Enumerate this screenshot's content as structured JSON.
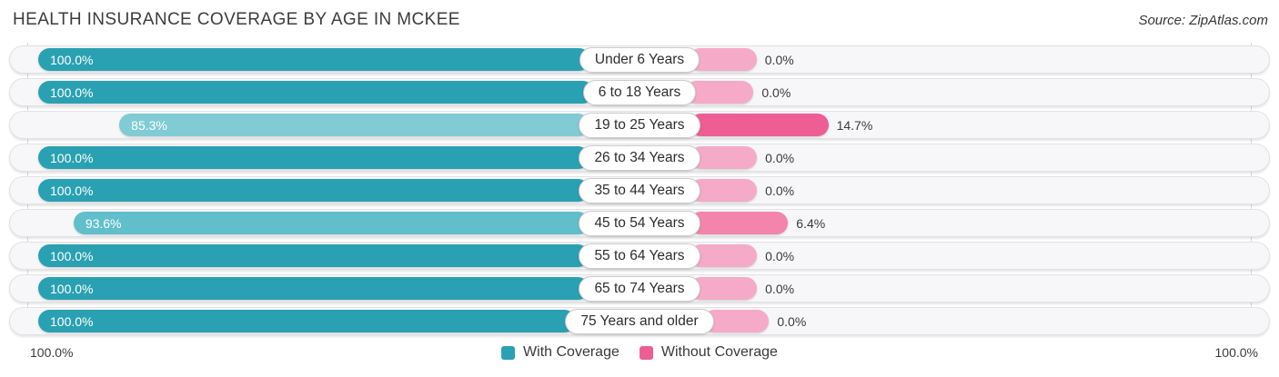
{
  "header": {
    "title": "HEALTH INSURANCE COVERAGE BY AGE IN MCKEE",
    "source": "Source: ZipAtlas.com"
  },
  "axis": {
    "left_label": "100.0%",
    "right_label": "100.0%"
  },
  "legend": [
    {
      "label": "With Coverage",
      "color": "#2aa1b2"
    },
    {
      "label": "Without Coverage",
      "color": "#ee5e93"
    }
  ],
  "rows": [
    {
      "label": "Under 6 Years",
      "with_label": "100.0%",
      "without_label": "0.0%",
      "with_value": 100.0,
      "without_value": 0.0,
      "with_color": "#2aa1b2",
      "without_color": "#f5abc7"
    },
    {
      "label": "6 to 18 Years",
      "with_label": "100.0%",
      "without_label": "0.0%",
      "with_value": 100.0,
      "without_value": 0.0,
      "with_color": "#2aa1b2",
      "without_color": "#f5abc7"
    },
    {
      "label": "19 to 25 Years",
      "with_label": "85.3%",
      "without_label": "14.7%",
      "with_value": 85.3,
      "without_value": 14.7,
      "with_color": "#80cbd4",
      "without_color": "#ee5e93"
    },
    {
      "label": "26 to 34 Years",
      "with_label": "100.0%",
      "without_label": "0.0%",
      "with_value": 100.0,
      "without_value": 0.0,
      "with_color": "#2aa1b2",
      "without_color": "#f5abc7"
    },
    {
      "label": "35 to 44 Years",
      "with_label": "100.0%",
      "without_label": "0.0%",
      "with_value": 100.0,
      "without_value": 0.0,
      "with_color": "#2aa1b2",
      "without_color": "#f5abc7"
    },
    {
      "label": "45 to 54 Years",
      "with_label": "93.6%",
      "without_label": "6.4%",
      "with_value": 93.6,
      "without_value": 6.4,
      "with_color": "#60bfcb",
      "without_color": "#f384ab"
    },
    {
      "label": "55 to 64 Years",
      "with_label": "100.0%",
      "without_label": "0.0%",
      "with_value": 100.0,
      "without_value": 0.0,
      "with_color": "#2aa1b2",
      "without_color": "#f5abc7"
    },
    {
      "label": "65 to 74 Years",
      "with_label": "100.0%",
      "without_label": "0.0%",
      "with_value": 100.0,
      "without_value": 0.0,
      "with_color": "#2aa1b2",
      "without_color": "#f5abc7"
    },
    {
      "label": "75 Years and older",
      "with_label": "100.0%",
      "without_label": "0.0%",
      "with_value": 100.0,
      "without_value": 0.0,
      "with_color": "#2aa1b2",
      "without_color": "#f5abc7"
    }
  ],
  "chart_data": {
    "type": "bar",
    "orientation": "horizontal-diverging",
    "title": "Health Insurance Coverage by Age in McKee",
    "source": "Source: ZipAtlas.com",
    "categories": [
      "Under 6 Years",
      "6 to 18 Years",
      "19 to 25 Years",
      "26 to 34 Years",
      "35 to 44 Years",
      "45 to 54 Years",
      "55 to 64 Years",
      "65 to 74 Years",
      "75 Years and older"
    ],
    "series": [
      {
        "name": "With Coverage",
        "values": [
          100.0,
          100.0,
          85.3,
          100.0,
          100.0,
          93.6,
          100.0,
          100.0,
          100.0
        ]
      },
      {
        "name": "Without Coverage",
        "values": [
          0.0,
          0.0,
          14.7,
          0.0,
          0.0,
          6.4,
          0.0,
          0.0,
          0.0
        ]
      }
    ],
    "units": "%",
    "xlim_left": [
      100,
      0
    ],
    "xlim_right": [
      0,
      100
    ],
    "axis_end_labels": [
      "100.0%",
      "100.0%"
    ],
    "legend_position": "bottom",
    "grid": "end-lines-only"
  }
}
